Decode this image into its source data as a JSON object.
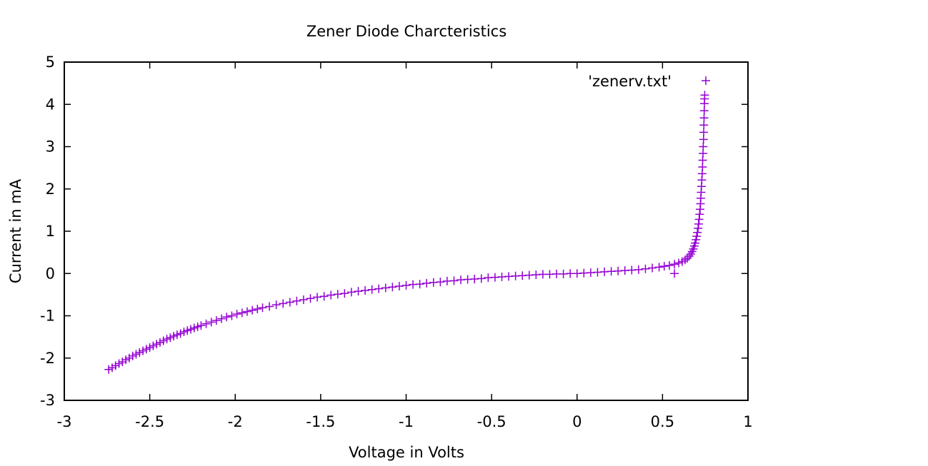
{
  "chart_data": {
    "type": "scatter",
    "title": "Zener Diode Charcteristics",
    "xlabel": "Voltage in Volts",
    "ylabel": "Current in mA",
    "xlim": [
      -3,
      1
    ],
    "ylim": [
      -3,
      5
    ],
    "grid": false,
    "legend_position": "top-right",
    "marker": "plus",
    "x_ticks": [
      "-3",
      "-2.5",
      "-2",
      "-1.5",
      "-1",
      "-0.5",
      "0",
      "0.5",
      "1"
    ],
    "y_ticks": [
      "5",
      "4",
      "3",
      "2",
      "1",
      "0",
      "-1",
      "-2",
      "-3"
    ],
    "series": [
      {
        "name": "'zenerv.txt'",
        "color": "#9400d3",
        "points": [
          {
            "x": -2.74,
            "y": -2.27
          },
          {
            "x": -2.72,
            "y": -2.23
          },
          {
            "x": -2.7,
            "y": -2.18
          },
          {
            "x": -2.68,
            "y": -2.13
          },
          {
            "x": -2.66,
            "y": -2.09
          },
          {
            "x": -2.64,
            "y": -2.04
          },
          {
            "x": -2.62,
            "y": -2.0
          },
          {
            "x": -2.6,
            "y": -1.95
          },
          {
            "x": -2.58,
            "y": -1.91
          },
          {
            "x": -2.56,
            "y": -1.87
          },
          {
            "x": -2.54,
            "y": -1.83
          },
          {
            "x": -2.52,
            "y": -1.79
          },
          {
            "x": -2.5,
            "y": -1.75
          },
          {
            "x": -2.48,
            "y": -1.71
          },
          {
            "x": -2.46,
            "y": -1.67
          },
          {
            "x": -2.44,
            "y": -1.63
          },
          {
            "x": -2.42,
            "y": -1.59
          },
          {
            "x": -2.4,
            "y": -1.55
          },
          {
            "x": -2.38,
            "y": -1.52
          },
          {
            "x": -2.36,
            "y": -1.48
          },
          {
            "x": -2.34,
            "y": -1.45
          },
          {
            "x": -2.32,
            "y": -1.42
          },
          {
            "x": -2.3,
            "y": -1.38
          },
          {
            "x": -2.28,
            "y": -1.35
          },
          {
            "x": -2.26,
            "y": -1.32
          },
          {
            "x": -2.24,
            "y": -1.29
          },
          {
            "x": -2.22,
            "y": -1.26
          },
          {
            "x": -2.2,
            "y": -1.23
          },
          {
            "x": -2.17,
            "y": -1.19
          },
          {
            "x": -2.14,
            "y": -1.15
          },
          {
            "x": -2.11,
            "y": -1.11
          },
          {
            "x": -2.08,
            "y": -1.07
          },
          {
            "x": -2.05,
            "y": -1.03
          },
          {
            "x": -2.02,
            "y": -1.0
          },
          {
            "x": -1.99,
            "y": -0.96
          },
          {
            "x": -1.96,
            "y": -0.93
          },
          {
            "x": -1.93,
            "y": -0.9
          },
          {
            "x": -1.9,
            "y": -0.87
          },
          {
            "x": -1.87,
            "y": -0.84
          },
          {
            "x": -1.84,
            "y": -0.81
          },
          {
            "x": -1.8,
            "y": -0.78
          },
          {
            "x": -1.76,
            "y": -0.74
          },
          {
            "x": -1.72,
            "y": -0.71
          },
          {
            "x": -1.68,
            "y": -0.68
          },
          {
            "x": -1.64,
            "y": -0.65
          },
          {
            "x": -1.6,
            "y": -0.62
          },
          {
            "x": -1.56,
            "y": -0.59
          },
          {
            "x": -1.52,
            "y": -0.56
          },
          {
            "x": -1.48,
            "y": -0.54
          },
          {
            "x": -1.44,
            "y": -0.51
          },
          {
            "x": -1.4,
            "y": -0.49
          },
          {
            "x": -1.36,
            "y": -0.47
          },
          {
            "x": -1.32,
            "y": -0.44
          },
          {
            "x": -1.28,
            "y": -0.42
          },
          {
            "x": -1.24,
            "y": -0.4
          },
          {
            "x": -1.2,
            "y": -0.38
          },
          {
            "x": -1.16,
            "y": -0.36
          },
          {
            "x": -1.12,
            "y": -0.34
          },
          {
            "x": -1.08,
            "y": -0.32
          },
          {
            "x": -1.04,
            "y": -0.3
          },
          {
            "x": -1.0,
            "y": -0.28
          },
          {
            "x": -0.96,
            "y": -0.26
          },
          {
            "x": -0.92,
            "y": -0.25
          },
          {
            "x": -0.88,
            "y": -0.23
          },
          {
            "x": -0.84,
            "y": -0.21
          },
          {
            "x": -0.8,
            "y": -0.2
          },
          {
            "x": -0.76,
            "y": -0.18
          },
          {
            "x": -0.72,
            "y": -0.17
          },
          {
            "x": -0.68,
            "y": -0.15
          },
          {
            "x": -0.64,
            "y": -0.14
          },
          {
            "x": -0.6,
            "y": -0.13
          },
          {
            "x": -0.56,
            "y": -0.12
          },
          {
            "x": -0.52,
            "y": -0.1
          },
          {
            "x": -0.48,
            "y": -0.09
          },
          {
            "x": -0.44,
            "y": -0.08
          },
          {
            "x": -0.4,
            "y": -0.07
          },
          {
            "x": -0.36,
            "y": -0.06
          },
          {
            "x": -0.32,
            "y": -0.05
          },
          {
            "x": -0.28,
            "y": -0.04
          },
          {
            "x": -0.24,
            "y": -0.03
          },
          {
            "x": -0.2,
            "y": -0.02
          },
          {
            "x": -0.16,
            "y": -0.02
          },
          {
            "x": -0.12,
            "y": -0.01
          },
          {
            "x": -0.08,
            "y": -0.01
          },
          {
            "x": -0.04,
            "y": 0.0
          },
          {
            "x": 0.0,
            "y": 0.0
          },
          {
            "x": 0.04,
            "y": 0.01
          },
          {
            "x": 0.08,
            "y": 0.02
          },
          {
            "x": 0.12,
            "y": 0.03
          },
          {
            "x": 0.16,
            "y": 0.04
          },
          {
            "x": 0.2,
            "y": 0.05
          },
          {
            "x": 0.24,
            "y": 0.06
          },
          {
            "x": 0.28,
            "y": 0.07
          },
          {
            "x": 0.32,
            "y": 0.08
          },
          {
            "x": 0.36,
            "y": 0.09
          },
          {
            "x": 0.4,
            "y": 0.11
          },
          {
            "x": 0.44,
            "y": 0.13
          },
          {
            "x": 0.48,
            "y": 0.15
          },
          {
            "x": 0.51,
            "y": 0.17
          },
          {
            "x": 0.54,
            "y": 0.19
          },
          {
            "x": 0.57,
            "y": 0.22
          },
          {
            "x": 0.595,
            "y": 0.25
          },
          {
            "x": 0.615,
            "y": 0.28
          },
          {
            "x": 0.632,
            "y": 0.32
          },
          {
            "x": 0.645,
            "y": 0.36
          },
          {
            "x": 0.656,
            "y": 0.41
          },
          {
            "x": 0.665,
            "y": 0.46
          },
          {
            "x": 0.673,
            "y": 0.52
          },
          {
            "x": 0.68,
            "y": 0.58
          },
          {
            "x": 0.686,
            "y": 0.65
          },
          {
            "x": 0.691,
            "y": 0.72
          },
          {
            "x": 0.696,
            "y": 0.8
          },
          {
            "x": 0.7,
            "y": 0.88
          },
          {
            "x": 0.704,
            "y": 0.97
          },
          {
            "x": 0.708,
            "y": 1.07
          },
          {
            "x": 0.711,
            "y": 1.17
          },
          {
            "x": 0.714,
            "y": 1.28
          },
          {
            "x": 0.717,
            "y": 1.4
          },
          {
            "x": 0.72,
            "y": 1.52
          },
          {
            "x": 0.722,
            "y": 1.65
          },
          {
            "x": 0.724,
            "y": 1.78
          },
          {
            "x": 0.726,
            "y": 1.92
          },
          {
            "x": 0.728,
            "y": 2.06
          },
          {
            "x": 0.73,
            "y": 2.21
          },
          {
            "x": 0.732,
            "y": 2.36
          },
          {
            "x": 0.734,
            "y": 2.52
          },
          {
            "x": 0.735,
            "y": 2.68
          },
          {
            "x": 0.737,
            "y": 2.84
          },
          {
            "x": 0.738,
            "y": 3.0
          },
          {
            "x": 0.74,
            "y": 3.17
          },
          {
            "x": 0.741,
            "y": 3.34
          },
          {
            "x": 0.742,
            "y": 3.51
          },
          {
            "x": 0.743,
            "y": 3.68
          },
          {
            "x": 0.744,
            "y": 3.85
          },
          {
            "x": 0.745,
            "y": 4.02
          },
          {
            "x": 0.746,
            "y": 4.13
          },
          {
            "x": 0.747,
            "y": 4.22
          },
          {
            "x": 0.57,
            "y": 0.0
          }
        ]
      }
    ]
  }
}
